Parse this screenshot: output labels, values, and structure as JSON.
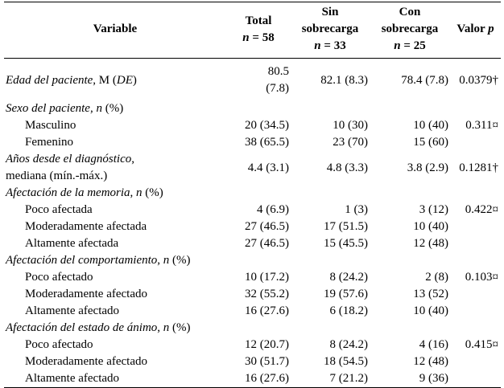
{
  "header": {
    "variable": "Variable",
    "total": "Total",
    "total_n": "n",
    "total_eq": " = 58",
    "sin": "Sin sobrecarga",
    "sin_n": "n",
    "sin_eq": " = 33",
    "con": "Con sobrecarga",
    "con_n": "n",
    "con_eq": " = 25",
    "valor": "Valor ",
    "valor_p": "p"
  },
  "rows": {
    "edad": {
      "label_it1": "Edad del paciente",
      "label_up": ", M (",
      "label_it2": "DE",
      "label_up2": ")",
      "total_a": "80.5",
      "total_b": "(7.8)",
      "sin": "82.1 (8.3)",
      "con": "78.4 (7.8)",
      "p": "0.0379†"
    },
    "sexo": {
      "label_it": "Sexo del paciente",
      "label_mid": ", ",
      "label_n": "n",
      "label_end": " (%)"
    },
    "masculino": {
      "label": "Masculino",
      "total": "20 (34.5)",
      "sin": "10 (30)",
      "con": "10 (40)",
      "p": "0.311¤"
    },
    "femenino": {
      "label": "Femenino",
      "total": "38 (65.5)",
      "sin": "23 (70)",
      "con": "15 (60)"
    },
    "anios": {
      "label_it": "Años desde el diagnóstico",
      "label_up": ",",
      "label_line2": "mediana (mín.-máx.)",
      "total": "4.4 (3.1)",
      "sin": "4.8 (3.3)",
      "con": "3.8 (2.9)",
      "p": "0.1281†"
    },
    "memoria": {
      "label_it": "Afectación de la memoria",
      "label_mid": ", ",
      "label_n": "n",
      "label_end": " (%)"
    },
    "mem_poco": {
      "label": "Poco afectada",
      "total": "4 (6.9)",
      "sin": "1 (3)",
      "con": "3 (12)",
      "p": "0.422¤"
    },
    "mem_mod": {
      "label": "Moderadamente afectada",
      "total": "27 (46.5)",
      "sin": "17 (51.5)",
      "con": "10 (40)"
    },
    "mem_alt": {
      "label": "Altamente afectada",
      "total": "27 (46.5)",
      "sin": "15 (45.5)",
      "con": "12 (48)"
    },
    "comport": {
      "label_it": "Afectación del comportamiento",
      "label_mid": ", ",
      "label_n": "n",
      "label_end": " (%)"
    },
    "com_poco": {
      "label": "Poco afectado",
      "total": "10 (17.2)",
      "sin": "8 (24.2)",
      "con": "2 (8)",
      "p": "0.103¤"
    },
    "com_mod": {
      "label": "Moderadamente afectado",
      "total": "32 (55.2)",
      "sin": "19 (57.6)",
      "con": "13 (52)"
    },
    "com_alt": {
      "label": "Altamente afectado",
      "total": "16 (27.6)",
      "sin": "6 (18.2)",
      "con": "10 (40)"
    },
    "animo": {
      "label_it": "Afectación del estado de ánimo",
      "label_mid": ", ",
      "label_n": "n",
      "label_end": " (%)"
    },
    "ani_poco": {
      "label": "Poco afectado",
      "total": "12 (20.7)",
      "sin": "8 (24.2)",
      "con": "4 (16)",
      "p": "0.415¤"
    },
    "ani_mod": {
      "label": "Moderadamente afectado",
      "total": "30 (51.7)",
      "sin": "18 (54.5)",
      "con": "12 (48)"
    },
    "ani_alt": {
      "label": "Altamente afectado",
      "total": "16 (27.6)",
      "sin": "7 (21.2)",
      "con": "9 (36)"
    }
  }
}
